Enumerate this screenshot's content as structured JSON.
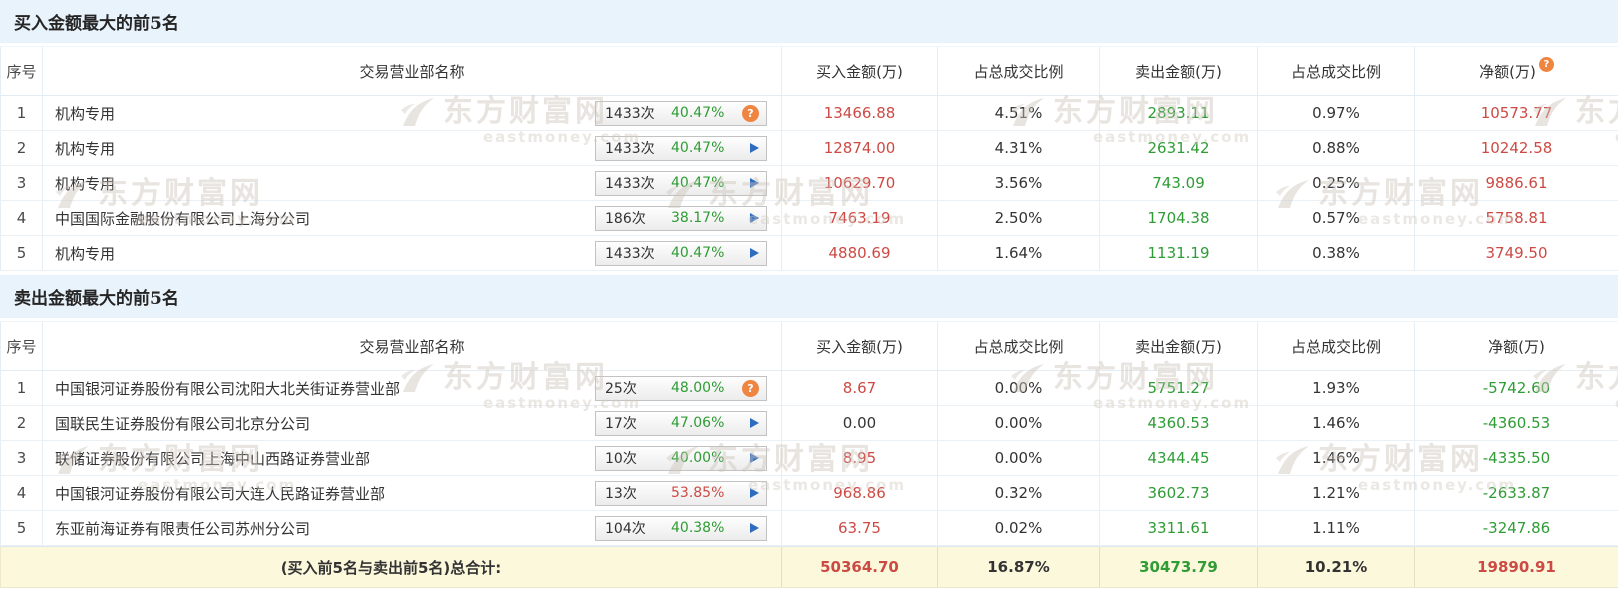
{
  "watermark": {
    "brand": "东方财富网",
    "domain": "eastmoney.com"
  },
  "colors": {
    "up_red": "#cd4a44",
    "down_green": "#2f9c35",
    "help_orange": "#ee8540",
    "arrow_blue": "#2e6cc0",
    "section_bg": "#e9f3fb",
    "total_bg": "#fcf8dc"
  },
  "buy_section": {
    "title": "买入金额最大的前5名",
    "header": {
      "no": "序号",
      "name": "交易营业部名称",
      "buy": "买入金额(万)",
      "buy_ratio": "占总成交比例",
      "sell": "卖出金额(万)",
      "sell_ratio": "占总成交比例",
      "net": "净额(万)"
    },
    "rows": [
      {
        "no": "1",
        "name": "机构专用",
        "count": "1433次",
        "pct": "40.47%",
        "pct_color": "green",
        "icon": "question",
        "buy": "13466.88",
        "buy_color": "red",
        "buy_ratio": "4.51%",
        "sell": "2893.11",
        "sell_ratio": "0.97%",
        "net": "10573.77",
        "net_color": "red"
      },
      {
        "no": "2",
        "name": "机构专用",
        "count": "1433次",
        "pct": "40.47%",
        "pct_color": "green",
        "icon": "arrow",
        "buy": "12874.00",
        "buy_color": "red",
        "buy_ratio": "4.31%",
        "sell": "2631.42",
        "sell_ratio": "0.88%",
        "net": "10242.58",
        "net_color": "red"
      },
      {
        "no": "3",
        "name": "机构专用",
        "count": "1433次",
        "pct": "40.47%",
        "pct_color": "green",
        "icon": "arrow",
        "buy": "10629.70",
        "buy_color": "red",
        "buy_ratio": "3.56%",
        "sell": "743.09",
        "sell_ratio": "0.25%",
        "net": "9886.61",
        "net_color": "red"
      },
      {
        "no": "4",
        "name": "中国国际金融股份有限公司上海分公司",
        "count": "186次",
        "pct": "38.17%",
        "pct_color": "green",
        "icon": "arrow",
        "buy": "7463.19",
        "buy_color": "red",
        "buy_ratio": "2.50%",
        "sell": "1704.38",
        "sell_ratio": "0.57%",
        "net": "5758.81",
        "net_color": "red"
      },
      {
        "no": "5",
        "name": "机构专用",
        "count": "1433次",
        "pct": "40.47%",
        "pct_color": "green",
        "icon": "arrow",
        "buy": "4880.69",
        "buy_color": "red",
        "buy_ratio": "1.64%",
        "sell": "1131.19",
        "sell_ratio": "0.38%",
        "net": "3749.50",
        "net_color": "red"
      }
    ]
  },
  "sell_section": {
    "title": "卖出金额最大的前5名",
    "header": {
      "no": "序号",
      "name": "交易营业部名称",
      "buy": "买入金额(万)",
      "buy_ratio": "占总成交比例",
      "sell": "卖出金额(万)",
      "sell_ratio": "占总成交比例",
      "net": "净额(万)"
    },
    "rows": [
      {
        "no": "1",
        "name": "中国银河证券股份有限公司沈阳大北关街证券营业部",
        "count": "25次",
        "pct": "48.00%",
        "pct_color": "green",
        "icon": "question",
        "buy": "8.67",
        "buy_color": "red",
        "buy_ratio": "0.00%",
        "sell": "5751.27",
        "sell_ratio": "1.93%",
        "net": "-5742.60",
        "net_color": "green"
      },
      {
        "no": "2",
        "name": "国联民生证券股份有限公司北京分公司",
        "count": "17次",
        "pct": "47.06%",
        "pct_color": "green",
        "icon": "arrow",
        "buy": "0.00",
        "buy_color": "dark",
        "buy_ratio": "0.00%",
        "sell": "4360.53",
        "sell_ratio": "1.46%",
        "net": "-4360.53",
        "net_color": "green"
      },
      {
        "no": "3",
        "name": "联储证券股份有限公司上海中山西路证券营业部",
        "count": "10次",
        "pct": "40.00%",
        "pct_color": "green",
        "icon": "arrow",
        "buy": "8.95",
        "buy_color": "red",
        "buy_ratio": "0.00%",
        "sell": "4344.45",
        "sell_ratio": "1.46%",
        "net": "-4335.50",
        "net_color": "green"
      },
      {
        "no": "4",
        "name": "中国银河证券股份有限公司大连人民路证券营业部",
        "count": "13次",
        "pct": "53.85%",
        "pct_color": "red",
        "icon": "arrow",
        "buy": "968.86",
        "buy_color": "red",
        "buy_ratio": "0.32%",
        "sell": "3602.73",
        "sell_ratio": "1.21%",
        "net": "-2633.87",
        "net_color": "green"
      },
      {
        "no": "5",
        "name": "东亚前海证券有限责任公司苏州分公司",
        "count": "104次",
        "pct": "40.38%",
        "pct_color": "green",
        "icon": "arrow",
        "buy": "63.75",
        "buy_color": "red",
        "buy_ratio": "0.02%",
        "sell": "3311.61",
        "sell_ratio": "1.11%",
        "net": "-3247.86",
        "net_color": "green"
      }
    ]
  },
  "total_row": {
    "label": "(买入前5名与卖出前5名)总合计:",
    "buy": "50364.70",
    "buy_ratio": "16.87%",
    "sell": "30473.79",
    "sell_ratio": "10.21%",
    "net": "19890.91"
  }
}
